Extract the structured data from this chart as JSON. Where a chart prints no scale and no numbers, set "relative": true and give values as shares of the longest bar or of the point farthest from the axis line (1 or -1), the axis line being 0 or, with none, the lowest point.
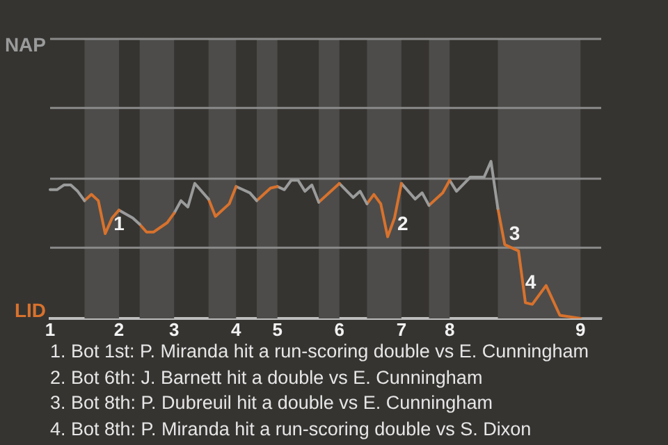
{
  "chart_data": {
    "type": "line",
    "relative": true,
    "ref_lines": [
      {
        "axis": "y",
        "value": 0.45,
        "color": "#8a8a8a"
      },
      {
        "axis": "y",
        "value": 0.89,
        "color": "#8a8a8a"
      },
      {
        "axis": "y",
        "value": 1.34,
        "color": "#8a8a8a"
      },
      {
        "axis": "y",
        "value": 1.78,
        "color": "#8a8a8a"
      }
    ],
    "legend": false,
    "marker": "none",
    "line_style": "solid",
    "categories": [
      "1",
      null,
      null,
      null,
      null,
      null,
      null,
      null,
      null,
      null,
      "2",
      null,
      null,
      null,
      null,
      null,
      null,
      null,
      "3",
      null,
      null,
      null,
      null,
      null,
      null,
      null,
      null,
      "4",
      null,
      null,
      null,
      null,
      null,
      "5",
      null,
      null,
      null,
      null,
      null,
      null,
      null,
      null,
      "6",
      null,
      null,
      null,
      null,
      null,
      null,
      null,
      null,
      "7",
      null,
      null,
      null,
      null,
      null,
      null,
      "8",
      null,
      null,
      null,
      null,
      null,
      null,
      null,
      null,
      null,
      null,
      null,
      null,
      null,
      null,
      null,
      null,
      null,
      null,
      "9",
      null,
      null,
      null
    ],
    "series": [
      {
        "name": "NAP",
        "color": "#9a9b9b",
        "values": [
          0.82,
          0.82,
          0.85,
          0.85,
          0.81,
          0.75,
          null,
          null,
          null,
          null,
          null,
          null,
          null,
          null,
          null,
          null,
          null,
          null,
          null,
          null,
          null,
          null,
          null,
          null,
          null,
          null,
          null,
          null,
          null,
          null,
          null,
          null,
          null,
          null,
          null,
          null,
          null,
          null,
          null,
          null,
          null,
          null,
          null,
          null,
          null,
          null,
          null,
          null,
          null,
          null,
          null,
          null,
          null,
          null,
          null,
          null,
          null,
          null,
          null,
          null,
          null,
          null,
          null,
          null,
          null,
          null,
          null,
          null,
          null,
          null,
          null,
          null,
          null,
          null,
          null,
          null,
          null,
          null,
          null,
          null,
          null
        ]
      },
      {
        "name": "LID",
        "color": "#d8722d",
        "values": [
          null,
          null,
          null,
          null,
          null,
          0.75,
          0.79,
          0.75,
          0.54,
          0.64,
          0.69,
          null,
          null,
          null,
          null,
          null,
          null,
          null,
          null,
          null,
          null,
          null,
          null,
          null,
          null,
          null,
          null,
          null,
          null,
          null,
          null,
          null,
          null,
          null,
          null,
          null,
          null,
          null,
          null,
          null,
          null,
          null,
          null,
          null,
          null,
          null,
          null,
          null,
          null,
          null,
          null,
          null,
          null,
          null,
          null,
          null,
          null,
          null,
          null,
          null,
          null,
          null,
          null,
          null,
          null,
          null,
          null,
          null,
          null,
          null,
          null,
          null,
          null,
          null,
          null,
          null,
          null,
          null,
          null,
          null,
          null
        ]
      },
      {
        "color": "#9a9b9b",
        "values": [
          null,
          null,
          null,
          null,
          null,
          null,
          null,
          null,
          null,
          null,
          0.69,
          null,
          0.64,
          0.6,
          null,
          null,
          null,
          null,
          null,
          null,
          null,
          null,
          null,
          null,
          null,
          null,
          null,
          null,
          null,
          null,
          null,
          null,
          null,
          null,
          null,
          null,
          null,
          null,
          null,
          null,
          null,
          null,
          null,
          null,
          null,
          null,
          null,
          null,
          null,
          null,
          null,
          null,
          null,
          null,
          null,
          null,
          null,
          null,
          null,
          null,
          null,
          null,
          null,
          null,
          null,
          null,
          null,
          null,
          null,
          null,
          null,
          null,
          null,
          null,
          null,
          null,
          null,
          null,
          null,
          null,
          null
        ]
      },
      {
        "color": "#d8722d",
        "values": [
          null,
          null,
          null,
          null,
          null,
          null,
          null,
          null,
          null,
          null,
          null,
          null,
          null,
          0.6,
          0.55,
          0.55,
          null,
          0.61,
          0.67,
          null,
          null,
          null,
          null,
          null,
          null,
          null,
          null,
          null,
          null,
          null,
          null,
          null,
          null,
          null,
          null,
          null,
          null,
          null,
          null,
          null,
          null,
          null,
          null,
          null,
          null,
          null,
          null,
          null,
          null,
          null,
          null,
          null,
          null,
          null,
          null,
          null,
          null,
          null,
          null,
          null,
          null,
          null,
          null,
          null,
          null,
          null,
          null,
          null,
          null,
          null,
          null,
          null,
          null,
          null,
          null,
          null,
          null,
          null,
          null,
          null,
          null
        ]
      },
      {
        "color": "#9a9b9b",
        "values": [
          null,
          null,
          null,
          null,
          null,
          null,
          null,
          null,
          null,
          null,
          null,
          null,
          null,
          null,
          null,
          null,
          null,
          null,
          0.67,
          0.75,
          0.71,
          0.86,
          null,
          0.76,
          null,
          null,
          null,
          null,
          null,
          null,
          null,
          null,
          null,
          null,
          null,
          null,
          null,
          null,
          null,
          null,
          null,
          null,
          null,
          null,
          null,
          null,
          null,
          null,
          null,
          null,
          null,
          null,
          null,
          null,
          null,
          null,
          null,
          null,
          null,
          null,
          null,
          null,
          null,
          null,
          null,
          null,
          null,
          null,
          null,
          null,
          null,
          null,
          null,
          null,
          null,
          null,
          null,
          null,
          null,
          null,
          null
        ]
      },
      {
        "color": "#d8722d",
        "values": [
          null,
          null,
          null,
          null,
          null,
          null,
          null,
          null,
          null,
          null,
          null,
          null,
          null,
          null,
          null,
          null,
          null,
          null,
          null,
          null,
          null,
          null,
          null,
          0.76,
          0.65,
          null,
          0.73,
          0.84,
          null,
          null,
          null,
          null,
          null,
          null,
          null,
          null,
          null,
          null,
          null,
          null,
          null,
          null,
          null,
          null,
          null,
          null,
          null,
          null,
          null,
          null,
          null,
          null,
          null,
          null,
          null,
          null,
          null,
          null,
          null,
          null,
          null,
          null,
          null,
          null,
          null,
          null,
          null,
          null,
          null,
          null,
          null,
          null,
          null,
          null,
          null,
          null,
          null,
          null,
          null,
          null,
          null
        ]
      },
      {
        "color": "#9a9b9b",
        "values": [
          null,
          null,
          null,
          null,
          null,
          null,
          null,
          null,
          null,
          null,
          null,
          null,
          null,
          null,
          null,
          null,
          null,
          null,
          null,
          null,
          null,
          null,
          null,
          null,
          null,
          null,
          null,
          0.84,
          null,
          0.8,
          0.75,
          null,
          null,
          null,
          null,
          null,
          null,
          null,
          null,
          null,
          null,
          null,
          null,
          null,
          null,
          null,
          null,
          null,
          null,
          null,
          null,
          null,
          null,
          null,
          null,
          null,
          null,
          null,
          null,
          null,
          null,
          null,
          null,
          null,
          null,
          null,
          null,
          null,
          null,
          null,
          null,
          null,
          null,
          null,
          null,
          null,
          null,
          null,
          null,
          null,
          null
        ]
      },
      {
        "color": "#d8722d",
        "values": [
          null,
          null,
          null,
          null,
          null,
          null,
          null,
          null,
          null,
          null,
          null,
          null,
          null,
          null,
          null,
          null,
          null,
          null,
          null,
          null,
          null,
          null,
          null,
          null,
          null,
          null,
          null,
          null,
          null,
          null,
          0.75,
          0.79,
          0.83,
          0.84,
          null,
          null,
          null,
          null,
          null,
          null,
          null,
          null,
          null,
          null,
          null,
          null,
          null,
          null,
          null,
          null,
          null,
          null,
          null,
          null,
          null,
          null,
          null,
          null,
          null,
          null,
          null,
          null,
          null,
          null,
          null,
          null,
          null,
          null,
          null,
          null,
          null,
          null,
          null,
          null,
          null,
          null,
          null,
          null,
          null,
          null,
          null
        ]
      },
      {
        "color": "#9a9b9b",
        "values": [
          null,
          null,
          null,
          null,
          null,
          null,
          null,
          null,
          null,
          null,
          null,
          null,
          null,
          null,
          null,
          null,
          null,
          null,
          null,
          null,
          null,
          null,
          null,
          null,
          null,
          null,
          null,
          null,
          null,
          null,
          null,
          null,
          null,
          0.84,
          0.82,
          0.88,
          0.88,
          0.81,
          0.85,
          0.74,
          null,
          null,
          null,
          null,
          null,
          null,
          null,
          null,
          null,
          null,
          null,
          null,
          null,
          null,
          null,
          null,
          null,
          null,
          null,
          null,
          null,
          null,
          null,
          null,
          null,
          null,
          null,
          null,
          null,
          null,
          null,
          null,
          null,
          null,
          null,
          null,
          null,
          null,
          null,
          null,
          null
        ]
      },
      {
        "color": "#d8722d",
        "values": [
          null,
          null,
          null,
          null,
          null,
          null,
          null,
          null,
          null,
          null,
          null,
          null,
          null,
          null,
          null,
          null,
          null,
          null,
          null,
          null,
          null,
          null,
          null,
          null,
          null,
          null,
          null,
          null,
          null,
          null,
          null,
          null,
          null,
          null,
          null,
          null,
          null,
          null,
          null,
          0.74,
          null,
          null,
          0.86,
          null,
          null,
          null,
          null,
          null,
          null,
          null,
          null,
          null,
          null,
          null,
          null,
          null,
          null,
          null,
          null,
          null,
          null,
          null,
          null,
          null,
          null,
          null,
          null,
          null,
          null,
          null,
          null,
          null,
          null,
          null,
          null,
          null,
          null,
          null,
          null,
          null,
          null
        ]
      },
      {
        "color": "#9a9b9b",
        "values": [
          null,
          null,
          null,
          null,
          null,
          null,
          null,
          null,
          null,
          null,
          null,
          null,
          null,
          null,
          null,
          null,
          null,
          null,
          null,
          null,
          null,
          null,
          null,
          null,
          null,
          null,
          null,
          null,
          null,
          null,
          null,
          null,
          null,
          null,
          null,
          null,
          null,
          null,
          null,
          null,
          null,
          null,
          0.86,
          null,
          0.77,
          0.81,
          0.73,
          null,
          null,
          null,
          null,
          null,
          null,
          null,
          null,
          null,
          null,
          null,
          null,
          null,
          null,
          null,
          null,
          null,
          null,
          null,
          null,
          null,
          null,
          null,
          null,
          null,
          null,
          null,
          null,
          null,
          null,
          null,
          null,
          null,
          null
        ]
      },
      {
        "color": "#d8722d",
        "values": [
          null,
          null,
          null,
          null,
          null,
          null,
          null,
          null,
          null,
          null,
          null,
          null,
          null,
          null,
          null,
          null,
          null,
          null,
          null,
          null,
          null,
          null,
          null,
          null,
          null,
          null,
          null,
          null,
          null,
          null,
          null,
          null,
          null,
          null,
          null,
          null,
          null,
          null,
          null,
          null,
          null,
          null,
          null,
          null,
          null,
          null,
          0.73,
          0.79,
          0.73,
          0.52,
          0.64,
          0.86,
          null,
          null,
          null,
          null,
          null,
          null,
          null,
          null,
          null,
          null,
          null,
          null,
          null,
          null,
          null,
          null,
          null,
          null,
          null,
          null,
          null,
          null,
          null,
          null,
          null,
          null,
          null,
          null,
          null
        ]
      },
      {
        "color": "#9a9b9b",
        "values": [
          null,
          null,
          null,
          null,
          null,
          null,
          null,
          null,
          null,
          null,
          null,
          null,
          null,
          null,
          null,
          null,
          null,
          null,
          null,
          null,
          null,
          null,
          null,
          null,
          null,
          null,
          null,
          null,
          null,
          null,
          null,
          null,
          null,
          null,
          null,
          null,
          null,
          null,
          null,
          null,
          null,
          null,
          null,
          null,
          null,
          null,
          null,
          null,
          null,
          null,
          null,
          0.86,
          null,
          0.76,
          0.8,
          0.72,
          null,
          null,
          null,
          null,
          null,
          null,
          null,
          null,
          null,
          null,
          null,
          null,
          null,
          null,
          null,
          null,
          null,
          null,
          null,
          null,
          null,
          null,
          null,
          null,
          null
        ]
      },
      {
        "color": "#d8722d",
        "values": [
          null,
          null,
          null,
          null,
          null,
          null,
          null,
          null,
          null,
          null,
          null,
          null,
          null,
          null,
          null,
          null,
          null,
          null,
          null,
          null,
          null,
          null,
          null,
          null,
          null,
          null,
          null,
          null,
          null,
          null,
          null,
          null,
          null,
          null,
          null,
          null,
          null,
          null,
          null,
          null,
          null,
          null,
          null,
          null,
          null,
          null,
          null,
          null,
          null,
          null,
          null,
          null,
          null,
          null,
          null,
          0.72,
          null,
          0.8,
          0.88,
          null,
          null,
          null,
          null,
          null,
          null,
          null,
          null,
          null,
          null,
          null,
          null,
          null,
          null,
          null,
          null,
          null,
          null,
          null,
          null,
          null,
          null
        ]
      },
      {
        "color": "#9a9b9b",
        "values": [
          null,
          null,
          null,
          null,
          null,
          null,
          null,
          null,
          null,
          null,
          null,
          null,
          null,
          null,
          null,
          null,
          null,
          null,
          null,
          null,
          null,
          null,
          null,
          null,
          null,
          null,
          null,
          null,
          null,
          null,
          null,
          null,
          null,
          null,
          null,
          null,
          null,
          null,
          null,
          null,
          null,
          null,
          null,
          null,
          null,
          null,
          null,
          null,
          null,
          null,
          null,
          null,
          null,
          null,
          null,
          null,
          null,
          null,
          0.88,
          0.81,
          null,
          0.9,
          null,
          0.9,
          1,
          0.7,
          null,
          null,
          null,
          null,
          null,
          null,
          null,
          null,
          null,
          null,
          null,
          null,
          null,
          null,
          null
        ]
      },
      {
        "color": "#d8722d",
        "values": [
          null,
          null,
          null,
          null,
          null,
          null,
          null,
          null,
          null,
          null,
          null,
          null,
          null,
          null,
          null,
          null,
          null,
          null,
          null,
          null,
          null,
          null,
          null,
          null,
          null,
          null,
          null,
          null,
          null,
          null,
          null,
          null,
          null,
          null,
          null,
          null,
          null,
          null,
          null,
          null,
          null,
          null,
          null,
          null,
          null,
          null,
          null,
          null,
          null,
          null,
          null,
          null,
          null,
          null,
          null,
          null,
          null,
          null,
          null,
          null,
          null,
          null,
          null,
          null,
          null,
          0.7,
          0.47,
          null,
          0.43,
          0.1,
          0.09,
          null,
          0.21,
          null,
          0.02,
          null,
          null,
          0,
          null,
          null,
          null
        ]
      },
      {
        "color": "#9a9b9b",
        "values": [
          null,
          null,
          null,
          null,
          null,
          null,
          null,
          null,
          null,
          null,
          null,
          null,
          null,
          null,
          null,
          null,
          null,
          null,
          null,
          null,
          null,
          null,
          null,
          null,
          null,
          null,
          null,
          null,
          null,
          null,
          null,
          null,
          null,
          null,
          null,
          null,
          null,
          null,
          null,
          null,
          null,
          null,
          null,
          null,
          null,
          null,
          null,
          null,
          null,
          null,
          null,
          null,
          null,
          null,
          null,
          null,
          null,
          null,
          null,
          null,
          null,
          null,
          null,
          null,
          null,
          null,
          null,
          null,
          null,
          null,
          null,
          null,
          null,
          null,
          null,
          null,
          null,
          0,
          null,
          null,
          0
        ]
      }
    ],
    "annotations": [
      "1",
      "2",
      "3",
      "4",
      "1. Bot 1st: P. Miranda hit a run-scoring double vs E. Cunningham",
      "2. Bot 6th: J. Barnett hit a double vs E. Cunningham",
      "3. Bot 8th: P. Dubreuil hit a double vs E. Cunningham",
      "4. Bot 8th: P. Miranda hit a run-scoring double vs S. Dixon"
    ]
  }
}
